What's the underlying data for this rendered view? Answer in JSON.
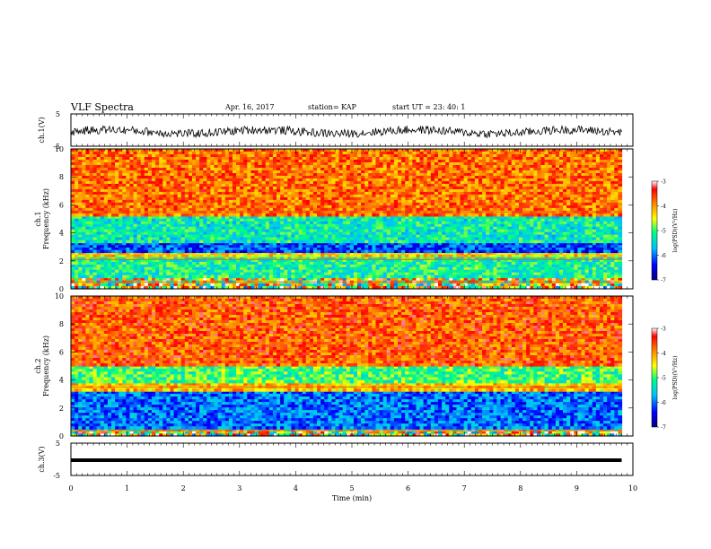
{
  "header": {
    "title": "VLF Spectra",
    "date": "Apr. 16, 2017",
    "station": "station= KAP",
    "start": "start  UT  =   23: 40: 1"
  },
  "chart_data": {
    "type": "heatmap",
    "x_axis": {
      "label": "Time  (min)",
      "range": [
        0,
        10
      ],
      "ticks": [
        "0",
        "1",
        "2",
        "3",
        "4",
        "5",
        "6",
        "7",
        "8",
        "9",
        "10"
      ]
    },
    "panels": [
      {
        "name": "ch.1 waveform",
        "ylabel": "ch.1(V)",
        "ylim": [
          -5,
          5
        ],
        "ytick_labels": [
          "5",
          "-5"
        ],
        "description_values": {
          "mean_level": -0.5,
          "data_end_min": 9.8
        }
      },
      {
        "name": "ch.1 spectrogram",
        "ylabel": "ch.1\nFrequency  (kHz)",
        "ylim": [
          0,
          10
        ],
        "ytick_labels": [
          "0",
          "2",
          "4",
          "6",
          "8",
          "10"
        ],
        "frequency_bands_kHz": [
          {
            "range": [
              0,
              0.8
            ],
            "level": "mixed"
          },
          {
            "range": [
              0.8,
              2.3
            ],
            "level": -5.2
          },
          {
            "range": [
              2.3,
              2.6
            ],
            "level": -4.3
          },
          {
            "range": [
              2.6,
              3.3
            ],
            "level": -6.2
          },
          {
            "range": [
              3.3,
              5.2
            ],
            "level": -5.3
          },
          {
            "range": [
              5.2,
              10
            ],
            "level": -3.8
          }
        ],
        "lines_kHz": [
          0.5,
          2.1,
          5.5
        ],
        "colorbar": {
          "label": "log(PSD)(V²/Hz)",
          "range": [
            -7,
            -3
          ],
          "tick_labels": [
            "-3",
            "-4",
            "-5",
            "-6",
            "-7"
          ]
        }
      },
      {
        "name": "ch.2 spectrogram",
        "ylabel": "ch.2\nFrequency  (kHz)",
        "ylim": [
          0,
          10
        ],
        "ytick_labels": [
          "0",
          "2",
          "4",
          "6",
          "8",
          "10"
        ],
        "frequency_bands_kHz": [
          {
            "range": [
              0,
              0.5
            ],
            "level": "mixed"
          },
          {
            "range": [
              0.5,
              3.2
            ],
            "level": -6.0
          },
          {
            "range": [
              3.2,
              3.8
            ],
            "level": -4.2
          },
          {
            "range": [
              3.8,
              5.0
            ],
            "level": -5.0
          },
          {
            "range": [
              5.0,
              10
            ],
            "level": -3.7
          }
        ],
        "lines_kHz": [
          0.4,
          3.5
        ],
        "colorbar": {
          "label": "log(PSD)(V²/Hz)",
          "range": [
            -7,
            -3
          ],
          "tick_labels": [
            "-3",
            "-4",
            "-5",
            "-6",
            "-7"
          ]
        }
      },
      {
        "name": "ch.3 waveform",
        "ylabel": "ch.3(V)",
        "ylim": [
          -5,
          5
        ],
        "ytick_labels": [
          "5",
          "-5"
        ],
        "description_values": {
          "constant_level": 0,
          "data_end_min": 9.8
        }
      }
    ],
    "colors": {
      "colormap": [
        "#000080",
        "#0000ff",
        "#00c0ff",
        "#00ff80",
        "#ffff00",
        "#ff8000",
        "#ff0000",
        "#ffffff"
      ]
    }
  }
}
